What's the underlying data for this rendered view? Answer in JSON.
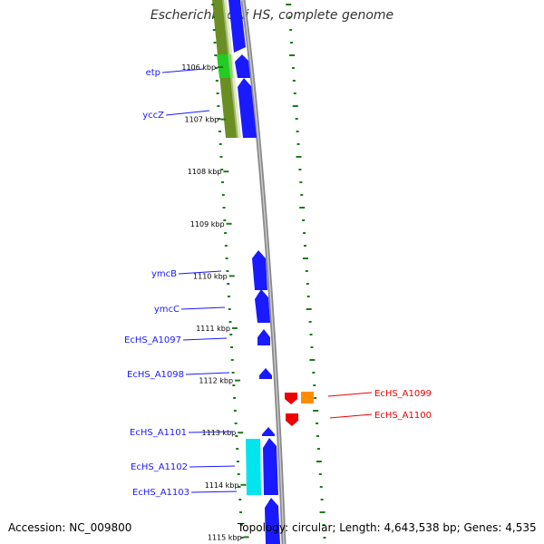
{
  "title": "Escherichia coli HS, complete genome",
  "accession": "Accession: NC_009800",
  "summary": "Topology: circular; Length: 4,643,538 bp; Genes: 4,535",
  "colors": {
    "forward_gene": "#1a1aff",
    "gc_skew": "#6b8e23",
    "tick": "#1f7a1f",
    "label_forward": "#1a1aff",
    "label_reverse": "#ee0000"
  },
  "ticks": [
    {
      "label": "1106 kbp"
    },
    {
      "label": "1107 kbp"
    },
    {
      "label": "1108 kbp"
    },
    {
      "label": "1109 kbp"
    },
    {
      "label": "1110 kbp"
    },
    {
      "label": "1111 kbp"
    },
    {
      "label": "1112 kbp"
    },
    {
      "label": "1113 kbp"
    },
    {
      "label": "1114 kbp"
    },
    {
      "label": "1115 kbp"
    }
  ],
  "gene_labels": [
    {
      "name": "etp",
      "strand": "forward"
    },
    {
      "name": "yccZ",
      "strand": "forward"
    },
    {
      "name": "ymcB",
      "strand": "forward"
    },
    {
      "name": "ymcC",
      "strand": "forward"
    },
    {
      "name": "EcHS_A1097",
      "strand": "forward"
    },
    {
      "name": "EcHS_A1098",
      "strand": "forward"
    },
    {
      "name": "EcHS_A1099",
      "strand": "reverse"
    },
    {
      "name": "EcHS_A1100",
      "strand": "reverse"
    },
    {
      "name": "EcHS_A1101",
      "strand": "forward"
    },
    {
      "name": "EcHS_A1102",
      "strand": "forward"
    },
    {
      "name": "EcHS_A1103",
      "strand": "forward"
    }
  ]
}
